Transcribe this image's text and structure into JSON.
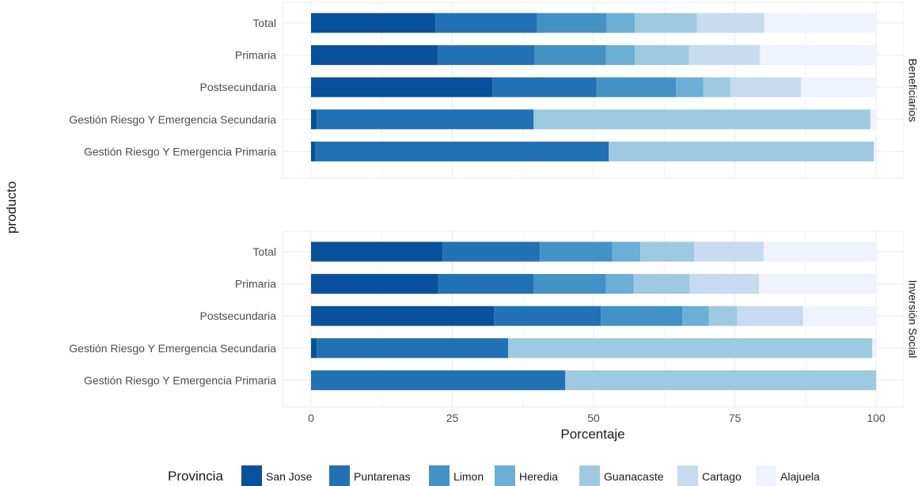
{
  "chart_data": {
    "type": "bar",
    "orientation": "horizontal",
    "stacked": true,
    "xlabel": "Porcentaje",
    "ylabel": "producto",
    "xlim": [
      0,
      100
    ],
    "x_ticks": [
      0,
      25,
      50,
      75,
      100
    ],
    "categories": [
      "Total",
      "Primaria",
      "Postsecundaria",
      "Gestión Riesgo Y Emergencia Secundaria",
      "Gestión Riesgo Y Emergencia Primaria"
    ],
    "legend": {
      "title": "Provincia",
      "position": "bottom",
      "items": [
        "San Jose",
        "Puntarenas",
        "Limon",
        "Heredia",
        "Guanacaste",
        "Cartago",
        "Alajuela"
      ],
      "colors": [
        "#08519c",
        "#2171b5",
        "#4292c6",
        "#6baed6",
        "#9ecae1",
        "#c6dbef",
        "#eff3ff"
      ]
    },
    "panels": [
      {
        "name": "Beneficiarios",
        "bars": [
          [
            22,
            18,
            12.3,
            5,
            11,
            11.9,
            19.8
          ],
          [
            22.4,
            17.2,
            12.6,
            5.1,
            9.6,
            12.5,
            20.6
          ],
          [
            32.1,
            18.4,
            14.1,
            4.8,
            4.8,
            12.5,
            13.3
          ],
          [
            1,
            38.4,
            0,
            0,
            59.6,
            0,
            1
          ],
          [
            0.8,
            51.9,
            0,
            0,
            46.9,
            0,
            0.4
          ]
        ]
      },
      {
        "name": "Inversión Social",
        "bars": [
          [
            23.3,
            17.2,
            12.8,
            5,
            9.5,
            12.3,
            19.9
          ],
          [
            22.5,
            16.9,
            12.8,
            4.9,
            9.9,
            12.3,
            20.7
          ],
          [
            32.4,
            18.9,
            14.4,
            4.7,
            5,
            11.7,
            12.9
          ],
          [
            1,
            33.9,
            0,
            0,
            64.4,
            0,
            0.7
          ],
          [
            0,
            45,
            0,
            0,
            55,
            0,
            0
          ]
        ]
      }
    ]
  }
}
